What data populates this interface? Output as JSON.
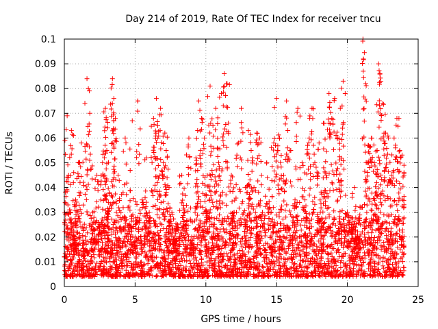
{
  "chart_data": {
    "type": "scatter",
    "title": "Day 214 of 2019, Rate Of TEC Index for receiver tncu",
    "xlabel": "GPS time / hours",
    "ylabel": "ROTI / TECUs",
    "xlim": [
      0,
      25
    ],
    "ylim": [
      0,
      0.1
    ],
    "xticks": [
      "0",
      "5",
      "10",
      "15",
      "20",
      "25"
    ],
    "yticks": [
      "0",
      "0.01",
      "0.02",
      "0.03",
      "0.04",
      "0.05",
      "0.06",
      "0.07",
      "0.08",
      "0.09",
      "0.1"
    ],
    "grid": true,
    "marker": "plus",
    "series_color": "#ff0000",
    "series": [
      {
        "name": "ROTI",
        "x": [
          0.05,
          0.2,
          0.3,
          0.5,
          0.7,
          0.8,
          1.0,
          1.2,
          1.5,
          1.6,
          1.8,
          2.0,
          2.3,
          2.5,
          2.7,
          2.9,
          3.0,
          3.2,
          3.4,
          3.5,
          3.6,
          3.8,
          4.0,
          4.3,
          4.6,
          4.8,
          5.0,
          5.2,
          5.5,
          5.8,
          6.0,
          6.3,
          6.5,
          6.6,
          6.8,
          7.0,
          7.1,
          7.2,
          7.4,
          7.6,
          7.8,
          8.0,
          8.3,
          8.5,
          8.8,
          9.0,
          9.3,
          9.5,
          9.7,
          9.9,
          10.1,
          10.3,
          10.5,
          10.7,
          10.9,
          11.1,
          11.3,
          11.5,
          11.8,
          12.0,
          12.3,
          12.5,
          12.8,
          13.0,
          13.2,
          13.4,
          13.6,
          13.8,
          14.0,
          14.3,
          14.5,
          14.8,
          15.0,
          15.2,
          15.5,
          15.7,
          16.0,
          16.3,
          16.5,
          16.8,
          17.0,
          17.3,
          17.5,
          17.7,
          18.0,
          18.3,
          18.5,
          18.7,
          18.9,
          19.1,
          19.3,
          19.5,
          19.7,
          20.0,
          20.3,
          20.5,
          20.7,
          20.9,
          21.1,
          21.3,
          21.5,
          21.7,
          21.9,
          22.1,
          22.2,
          22.3,
          22.5,
          22.7,
          22.9,
          23.1,
          23.3,
          23.5,
          23.7,
          23.9,
          24.0
        ],
        "y": [
          0.012,
          0.069,
          0.045,
          0.063,
          0.02,
          0.035,
          0.05,
          0.058,
          0.015,
          0.084,
          0.07,
          0.03,
          0.045,
          0.025,
          0.05,
          0.072,
          0.055,
          0.038,
          0.084,
          0.076,
          0.068,
          0.045,
          0.03,
          0.06,
          0.025,
          0.067,
          0.02,
          0.075,
          0.035,
          0.052,
          0.03,
          0.068,
          0.076,
          0.065,
          0.072,
          0.05,
          0.062,
          0.055,
          0.04,
          0.03,
          0.02,
          0.025,
          0.045,
          0.03,
          0.06,
          0.02,
          0.052,
          0.075,
          0.068,
          0.06,
          0.045,
          0.081,
          0.065,
          0.072,
          0.05,
          0.078,
          0.086,
          0.082,
          0.045,
          0.03,
          0.058,
          0.072,
          0.04,
          0.063,
          0.055,
          0.04,
          0.062,
          0.06,
          0.03,
          0.05,
          0.032,
          0.058,
          0.076,
          0.06,
          0.045,
          0.075,
          0.055,
          0.035,
          0.072,
          0.05,
          0.035,
          0.06,
          0.072,
          0.05,
          0.058,
          0.066,
          0.045,
          0.078,
          0.068,
          0.076,
          0.06,
          0.072,
          0.083,
          0.03,
          0.025,
          0.04,
          0.02,
          0.032,
          0.1,
          0.082,
          0.057,
          0.06,
          0.05,
          0.055,
          0.09,
          0.086,
          0.074,
          0.062,
          0.06,
          0.045,
          0.06,
          0.068,
          0.055,
          0.035,
          0.049
        ],
        "baseline_band": [
          0.004,
          0.028
        ]
      }
    ]
  }
}
